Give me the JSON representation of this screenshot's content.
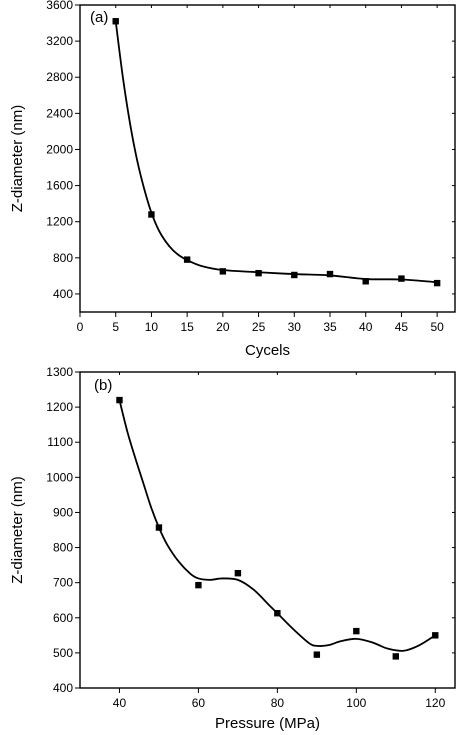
{
  "chart_data": [
    {
      "type": "scatter",
      "panel_label": "(a)",
      "xlabel": "Cycels",
      "ylabel": "Z-diameter (nm)",
      "xlim": [
        0,
        52.5
      ],
      "ylim": [
        200,
        3600
      ],
      "xticks": [
        0,
        5,
        10,
        15,
        20,
        25,
        30,
        35,
        40,
        45,
        50
      ],
      "yticks": [
        400,
        800,
        1200,
        1600,
        2000,
        2400,
        2800,
        3200,
        3600
      ],
      "x": [
        5,
        10,
        15,
        20,
        25,
        30,
        35,
        40,
        45,
        50
      ],
      "y": [
        3420,
        1280,
        780,
        650,
        630,
        610,
        620,
        540,
        570,
        520
      ],
      "fit": {
        "x": [
          5,
          6,
          7,
          8,
          9,
          10,
          11,
          12,
          13,
          14,
          15,
          17,
          20,
          25,
          30,
          35,
          40,
          45,
          50
        ],
        "y": [
          3420,
          2800,
          2290,
          1880,
          1560,
          1300,
          1110,
          980,
          885,
          820,
          775,
          710,
          665,
          640,
          620,
          605,
          565,
          560,
          530
        ]
      },
      "grid": false,
      "legend": "none"
    },
    {
      "type": "scatter",
      "panel_label": "(b)",
      "xlabel": "Pressure (MPa)",
      "ylabel": "Z-diameter (nm)",
      "xlim": [
        30,
        125
      ],
      "ylim": [
        400,
        1300
      ],
      "xticks": [
        40,
        60,
        80,
        100,
        120
      ],
      "yticks": [
        400,
        500,
        600,
        700,
        800,
        900,
        1000,
        1100,
        1200,
        1300
      ],
      "x": [
        40,
        50,
        60,
        70,
        80,
        90,
        100,
        110,
        120
      ],
      "y": [
        1220,
        857,
        693,
        727,
        613,
        495,
        562,
        490,
        550
      ],
      "fit": {
        "x": [
          40,
          42,
          44,
          46,
          48,
          50,
          52,
          55,
          58,
          60,
          63,
          66,
          70,
          74,
          78,
          80,
          84,
          88,
          90,
          93,
          96,
          100,
          104,
          108,
          112,
          116,
          120
        ],
        "y": [
          1220,
          1130,
          1055,
          985,
          915,
          857,
          810,
          760,
          725,
          712,
          708,
          712,
          708,
          680,
          635,
          613,
          568,
          528,
          520,
          522,
          533,
          540,
          530,
          512,
          506,
          522,
          550
        ]
      },
      "grid": false,
      "legend": "none"
    }
  ]
}
